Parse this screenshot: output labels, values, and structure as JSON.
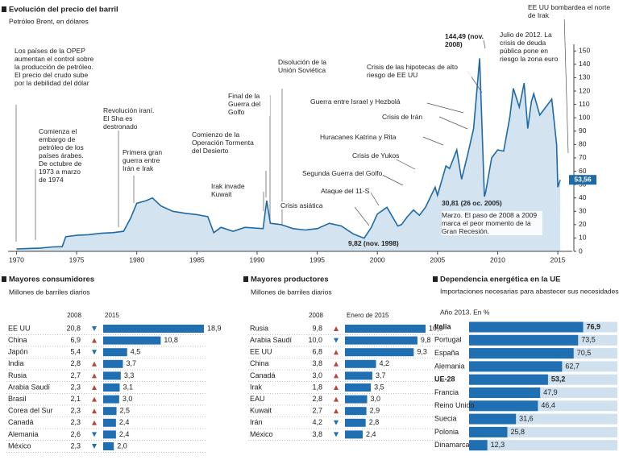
{
  "chart_data": [
    {
      "type": "area",
      "title": "Evolución del precio del barril",
      "subtitle": "Petróleo Brent, en dólares",
      "x": [
        1970,
        1971,
        1972,
        1973,
        1973.8,
        1974.1,
        1975,
        1976,
        1977,
        1978,
        1978.9,
        1979.5,
        1980,
        1980.8,
        1981.3,
        1982,
        1983,
        1984,
        1985,
        1985.9,
        1986.4,
        1987,
        1988,
        1989,
        1990.5,
        1990.8,
        1991.1,
        1992,
        1993,
        1994,
        1995,
        1996,
        1997,
        1998,
        1998.9,
        1999.5,
        2000,
        2000.8,
        2001.7,
        2002,
        2002.5,
        2003,
        2003.5,
        2004,
        2004.8,
        2005,
        2005.7,
        2006,
        2006.6,
        2007,
        2007.5,
        2008,
        2008.5,
        2008.9,
        2009,
        2009.5,
        2010,
        2010.5,
        2011,
        2011.3,
        2011.8,
        2012.2,
        2012.5,
        2012.8,
        2013,
        2013.5,
        2014,
        2014.5,
        2014.9,
        2015,
        2015.2
      ],
      "values": [
        1.8,
        2.2,
        2.5,
        3.3,
        3.5,
        11,
        12,
        12.5,
        13.5,
        14,
        15,
        25,
        36,
        38,
        40,
        34,
        30,
        28.5,
        27.5,
        26,
        14,
        18,
        15,
        18,
        17,
        38,
        21,
        20,
        17,
        16,
        17,
        21,
        19,
        13,
        9.82,
        18,
        28,
        33,
        19,
        20,
        26,
        31,
        27,
        33,
        48,
        42,
        64,
        62,
        76,
        54,
        72,
        92,
        144.49,
        41,
        44,
        70,
        76,
        75,
        100,
        122,
        108,
        126,
        92,
        112,
        118,
        102,
        108,
        114,
        80,
        48,
        53.56
      ],
      "value_labels": [
        null,
        null,
        null,
        null,
        null,
        null,
        null,
        null,
        null,
        null,
        null,
        null,
        null,
        null,
        null,
        null,
        null,
        null,
        null,
        null,
        null,
        null,
        null,
        null,
        null,
        null,
        null,
        null,
        null,
        null,
        null,
        null,
        null,
        null,
        null,
        null,
        null,
        null,
        null,
        null,
        null,
        null,
        null,
        null,
        null,
        null,
        null,
        null,
        null,
        null,
        null,
        null,
        null,
        null,
        null,
        null,
        null,
        null,
        null,
        null,
        null,
        null,
        null,
        null,
        null,
        null,
        null,
        null,
        null,
        null,
        "53,56"
      ],
      "color": "#1f6aa5",
      "fill": "#d3e3ef",
      "xlim": [
        1969.3,
        2016.2
      ],
      "xticks": [
        1970,
        1975,
        1980,
        1985,
        1990,
        1995,
        2000,
        2005,
        2010,
        2015
      ],
      "ylim": [
        0,
        155
      ],
      "yticks": [
        0,
        10,
        20,
        30,
        40,
        50,
        60,
        70,
        80,
        90,
        100,
        110,
        120,
        130,
        140,
        150
      ],
      "annotations": [
        "Los países de la OPEP aumentan el control sobre la producción de petróleo. El precio del crudo sube por la debilidad del dólar",
        "Comienza el embargo de petróleo de los países árabes. De octubre de 1973 a marzo de 1974",
        "Revolución iraní. El Sha es destronado",
        "Primera gran guerra entre Irán e Irak",
        "Comienzo de la Operación Tormenta del Desierto",
        "Irak invade Kuwait",
        "Final de la Guerra del Golfo",
        "Disolución de la Unión Soviética",
        "Crisis asiática",
        "9,82 (nov. 1998)",
        "Ataque del 11-S",
        "Segunda Guerra del Golfo",
        "Crisis de Yukos",
        "Huracanes Katrina y Rita",
        "Crisis de Irán",
        "Guerra entre Israel y Hezbolá",
        "Crisis de las hipotecas de alto riesgo de EE UU",
        "144,49 (nov. 2008)",
        "Julio de 2012. La crisis de deuda pública pone en riesgo la zona euro",
        "EE UU bombardea el norte de Irak",
        "30,81 (26 oc. 2005)",
        "Marzo. El paso de 2008 a 2009 marca el peor momento de la Gran Recesión."
      ]
    },
    {
      "type": "table-bar",
      "title": "Mayores consumidores",
      "subtitle": "Millones de barriles diarios",
      "categories": [
        "EE UU",
        "China",
        "Japón",
        "India",
        "Rusia",
        "Arabia Saudí",
        "Brasil",
        "Corea del Sur",
        "Canadá",
        "Alemania",
        "México"
      ],
      "series": [
        {
          "name": "2008",
          "values": [
            20.8,
            6.9,
            5.4,
            2.8,
            2.7,
            2.3,
            2.1,
            2.3,
            2.3,
            2.6,
            2.3
          ],
          "value_labels": [
            "20,8",
            "6,9",
            "5,4",
            "2,8",
            "2,7",
            "2,3",
            "2,1",
            "2,3",
            "2,3",
            "2,6",
            "2,3"
          ]
        },
        {
          "name": "2015",
          "color": "#1f6fb2",
          "values": [
            18.9,
            10.8,
            4.5,
            3.7,
            3.3,
            3.1,
            3.0,
            2.5,
            2.4,
            2.4,
            2.0
          ],
          "value_labels": [
            "18,9",
            "10,8",
            "4,5",
            "3,7",
            "3,3",
            "3,1",
            "3,0",
            "2,5",
            "2,4",
            "2,4",
            "2,0"
          ]
        }
      ]
    },
    {
      "type": "table-bar",
      "title": "Mayores productores",
      "subtitle": "Millones de barriles diarios",
      "categories": [
        "Rusia",
        "Arabia Saudí",
        "EE UU",
        "China",
        "Canadá",
        "Irak",
        "EAU",
        "Kuwait",
        "Irán",
        "México"
      ],
      "series": [
        {
          "name": "2008",
          "values": [
            9.8,
            10.0,
            6.8,
            3.8,
            3.0,
            1.8,
            2.8,
            2.7,
            4.2,
            3.8
          ],
          "value_labels": [
            "9,8",
            "10,0",
            "6,8",
            "3,8",
            "3,0",
            "1,8",
            "2,8",
            "2,7",
            "4,2",
            "3,8"
          ]
        },
        {
          "name": "Enero de 2015",
          "color": "#1f6fb2",
          "values": [
            10.9,
            9.8,
            9.3,
            4.2,
            3.7,
            3.5,
            3.0,
            2.9,
            2.8,
            2.4
          ],
          "value_labels": [
            "10,9",
            "9,8",
            "9,3",
            "4,2",
            "3,7",
            "3,5",
            "3,0",
            "2,9",
            "2,8",
            "2,4"
          ]
        }
      ]
    },
    {
      "type": "pct-bar",
      "title": "Dependencia energética en la UE",
      "subtitle": "Importaciones necesarias para abastecer sus necesidades energéticas",
      "note": "Año 2013. En %",
      "categories": [
        "Italia",
        "Portugal",
        "España",
        "Alemania",
        "UE-28",
        "Francia",
        "Reino Unido",
        "Suecia",
        "Polonia",
        "Dinamarca"
      ],
      "values": [
        76.9,
        73.5,
        70.5,
        62.7,
        53.2,
        47.9,
        46.4,
        31.6,
        25.8,
        12.3
      ],
      "value_labels": [
        "76,9",
        "73,5",
        "70,5",
        "62,7",
        "53,2",
        "47,9",
        "46,4",
        "31,6",
        "25,8",
        "12,3"
      ],
      "color": "#1f6fb2",
      "background": "#cfe0ee",
      "xlim": [
        0,
        100
      ]
    }
  ]
}
